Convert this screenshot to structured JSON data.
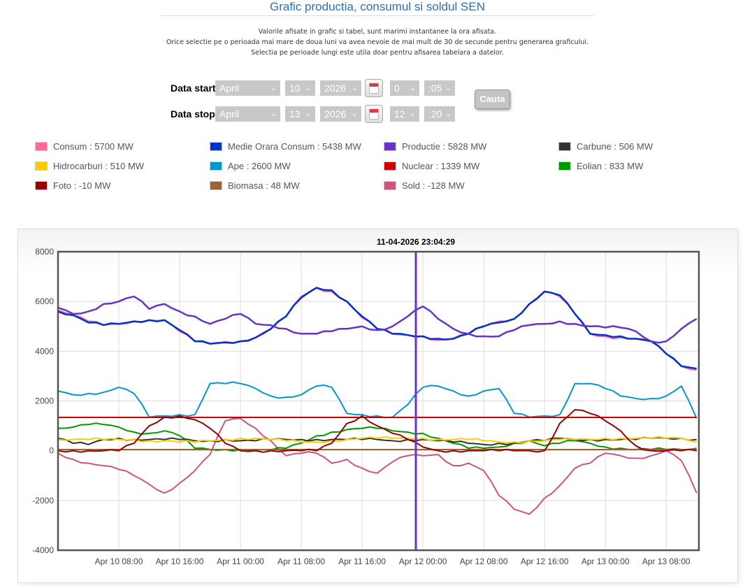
{
  "page": {
    "title": "Grafic productia, consumul si soldul SEN",
    "notes": [
      "Valorile afisate in grafic si tabel, sunt marimi instantanee la ora afisata.",
      "Orice selectie pe o perioada mai mare de doua luni va avea nevoie de mai mult de 30 de secunde pentru generarea graficului.",
      "Selectia pe perioade lungi este utila doar pentru afisarea tabelara a datelor."
    ]
  },
  "form": {
    "start": {
      "label": "Data start",
      "month": "April",
      "day": "10",
      "year": "2026",
      "hour": "0",
      "minute": ":05"
    },
    "stop": {
      "label": "Data stop",
      "month": "April",
      "day": "13",
      "year": "2026",
      "hour": "12",
      "minute": ":20"
    },
    "calendar_icon": "calendar-icon",
    "chevron_icon": "chevron-down-icon",
    "search_button": "Cauta"
  },
  "legend": [
    {
      "name": "Consum",
      "text": "Consum : 5700 MW",
      "color": "#ff6699"
    },
    {
      "name": "Medie Orara Consum",
      "text": "Medie Orara Consum : 5438 MW",
      "color": "#0033cc"
    },
    {
      "name": "Productie",
      "text": "Productie : 5828 MW",
      "color": "#6633cc"
    },
    {
      "name": "Carbune",
      "text": "Carbune : 506 MW",
      "color": "#333333"
    },
    {
      "name": "Hidrocarburi",
      "text": "Hidrocarburi : 510 MW",
      "color": "#ffcc00"
    },
    {
      "name": "Ape",
      "text": "Ape : 2600 MW",
      "color": "#0099cc"
    },
    {
      "name": "Nuclear",
      "text": "Nuclear : 1339 MW",
      "color": "#cc0000"
    },
    {
      "name": "Eolian",
      "text": "Eolian : 833 MW",
      "color": "#009900"
    },
    {
      "name": "Foto",
      "text": "Foto : -10 MW",
      "color": "#990000"
    },
    {
      "name": "Biomasa",
      "text": "Biomasa : 48 MW",
      "color": "#996633"
    },
    {
      "name": "Sold",
      "text": "Sold : -128 MW",
      "color": "#cc5580"
    }
  ],
  "chart_data": {
    "type": "line",
    "title": "11-04-2026 23:04:29",
    "xlabel": "",
    "ylabel": "",
    "ylim": [
      -4000,
      8000
    ],
    "yticks": [
      "8000",
      "6000",
      "4000",
      "2000",
      "0",
      "-2000",
      "-4000"
    ],
    "ytick_values": [
      8000,
      6000,
      4000,
      2000,
      0,
      -2000,
      -4000
    ],
    "x_unit": "hours since Apr 10 00:00",
    "xlim": [
      0,
      84.3
    ],
    "xticks": [
      {
        "label": "Apr 10 08:00",
        "h": 8
      },
      {
        "label": "Apr 10 16:00",
        "h": 16
      },
      {
        "label": "Apr 11 00:00",
        "h": 24
      },
      {
        "label": "Apr 11 08:00",
        "h": 32
      },
      {
        "label": "Apr 11 16:00",
        "h": 40
      },
      {
        "label": "Apr 12 00:00",
        "h": 48
      },
      {
        "label": "Apr 12 08:00",
        "h": 56
      },
      {
        "label": "Apr 12 16:00",
        "h": 64
      },
      {
        "label": "Apr 13 00:00",
        "h": 72
      },
      {
        "label": "Apr 13 08:00",
        "h": 80
      }
    ],
    "cursor_h": 47.07,
    "grid": true,
    "x": [
      0,
      2,
      4,
      6,
      8,
      10,
      12,
      14,
      16,
      18,
      20,
      22,
      24,
      26,
      28,
      30,
      32,
      34,
      36,
      38,
      40,
      42,
      44,
      46,
      48,
      50,
      52,
      54,
      56,
      58,
      60,
      62,
      64,
      66,
      68,
      70,
      72,
      74,
      76,
      78,
      80,
      82,
      84
    ],
    "series": [
      {
        "name": "Sold",
        "color": "#cc5580",
        "values": [
          -100,
          -350,
          -500,
          -600,
          -750,
          -1000,
          -1350,
          -1700,
          -1300,
          -800,
          -150,
          1200,
          1300,
          900,
          400,
          -200,
          -100,
          -100,
          -500,
          -350,
          -700,
          -900,
          -450,
          -200,
          -200,
          -150,
          -600,
          -500,
          -800,
          -1800,
          -2350,
          -2550,
          -1900,
          -1400,
          -700,
          -500,
          -100,
          -200,
          -300,
          -200,
          0,
          -400,
          -1700
        ]
      },
      {
        "name": "Ape",
        "color": "#0099cc",
        "values": [
          2400,
          2250,
          2300,
          2350,
          2550,
          2300,
          1350,
          1400,
          1450,
          1450,
          2700,
          2700,
          2700,
          2500,
          2200,
          2150,
          2250,
          2600,
          2550,
          1500,
          1450,
          1400,
          1350,
          1850,
          2550,
          2600,
          2400,
          2200,
          2400,
          2500,
          1500,
          1350,
          1400,
          1450,
          2700,
          2700,
          2500,
          2200,
          2100,
          2100,
          2200,
          2600,
          1300
        ]
      },
      {
        "name": "Eolian",
        "color": "#009900",
        "values": [
          900,
          950,
          1050,
          1050,
          950,
          750,
          700,
          800,
          600,
          100,
          50,
          50,
          50,
          30,
          30,
          100,
          300,
          600,
          750,
          850,
          900,
          900,
          800,
          750,
          700,
          500,
          300,
          100,
          100,
          150,
          300,
          400,
          200,
          300,
          400,
          300,
          150,
          100,
          50,
          50,
          50,
          50,
          100
        ]
      },
      {
        "name": "Carbune",
        "color": "#333333",
        "values": [
          500,
          300,
          250,
          450,
          500,
          450,
          450,
          450,
          450,
          400,
          400,
          450,
          400,
          400,
          450,
          450,
          450,
          450,
          450,
          450,
          450,
          450,
          400,
          450,
          450,
          400,
          350,
          300,
          250,
          300,
          300,
          400,
          400,
          500,
          450,
          450,
          450,
          450,
          450,
          500,
          500,
          500,
          450
        ]
      },
      {
        "name": "Hidrocarburi",
        "color": "#ffcc00",
        "values": [
          450,
          450,
          450,
          450,
          450,
          450,
          400,
          400,
          350,
          350,
          400,
          450,
          500,
          500,
          450,
          400,
          350,
          350,
          400,
          450,
          500,
          500,
          500,
          500,
          500,
          450,
          450,
          450,
          400,
          350,
          350,
          400,
          400,
          450,
          450,
          450,
          500,
          500,
          500,
          500,
          500,
          500,
          350
        ]
      },
      {
        "name": "Biomasa",
        "color": "#996633",
        "values": [
          48,
          48,
          48,
          48,
          48,
          48,
          48,
          48,
          48,
          48,
          48,
          48,
          48,
          48,
          48,
          48,
          48,
          48,
          48,
          48,
          48,
          48,
          48,
          48,
          48,
          48,
          48,
          48,
          48,
          48,
          48,
          48,
          48,
          48,
          48,
          48,
          48,
          48,
          48,
          48,
          48,
          48,
          48
        ]
      },
      {
        "name": "Nuclear",
        "color": "#cc0000",
        "values": [
          1340,
          1340,
          1340,
          1340,
          1340,
          1340,
          1340,
          1340,
          1340,
          1340,
          1340,
          1340,
          1340,
          1340,
          1340,
          1340,
          1340,
          1340,
          1340,
          1340,
          1340,
          1340,
          1340,
          1340,
          1340,
          1340,
          1340,
          1340,
          1340,
          1340,
          1340,
          1340,
          1340,
          1340,
          1340,
          1340,
          1340,
          1340,
          1340,
          1340,
          1340,
          1340,
          1340
        ]
      },
      {
        "name": "Foto",
        "color": "#990000",
        "values": [
          0,
          0,
          0,
          0,
          0,
          300,
          1000,
          1350,
          1400,
          1250,
          900,
          300,
          0,
          0,
          0,
          0,
          0,
          0,
          300,
          1100,
          1400,
          1000,
          700,
          450,
          150,
          0,
          0,
          0,
          0,
          0,
          0,
          0,
          0,
          1100,
          1650,
          1500,
          1200,
          800,
          200,
          0,
          0,
          0,
          0
        ]
      },
      {
        "name": "Consum",
        "color": "#ff6699",
        "values": [
          5650,
          5450,
          5200,
          5050,
          5100,
          5200,
          5250,
          5250,
          4800,
          4400,
          4300,
          4380,
          4400,
          4550,
          4900,
          5400,
          6200,
          6550,
          6400,
          6000,
          5350,
          4900,
          4700,
          4650,
          4600,
          4450,
          4500,
          4700,
          5000,
          5200,
          5300,
          5900,
          6400,
          6200,
          5500,
          4700,
          4600,
          4550,
          4500,
          4400,
          3900,
          3400,
          3250
        ]
      },
      {
        "name": "Medie Orara Consum",
        "color": "#0033cc",
        "values": [
          5600,
          5450,
          5150,
          5050,
          5100,
          5200,
          5250,
          5250,
          4850,
          4400,
          4300,
          4350,
          4400,
          4550,
          4900,
          5400,
          6150,
          6550,
          6450,
          6000,
          5400,
          4900,
          4700,
          4650,
          4600,
          4500,
          4500,
          4700,
          5000,
          5150,
          5300,
          5900,
          6400,
          6250,
          5500,
          4700,
          4650,
          4600,
          4500,
          4400,
          3900,
          3400,
          3300
        ]
      },
      {
        "name": "Productie",
        "color": "#6633cc",
        "values": [
          5750,
          5500,
          5600,
          5900,
          6000,
          6200,
          5700,
          5900,
          5600,
          5400,
          5100,
          5300,
          5500,
          5100,
          5050,
          4900,
          4700,
          4700,
          4800,
          4900,
          5000,
          4850,
          5000,
          5400,
          5800,
          5300,
          4900,
          4700,
          4600,
          4600,
          4850,
          5050,
          5100,
          5200,
          5100,
          5000,
          4950,
          4950,
          4800,
          4400,
          4400,
          4900,
          5300
        ]
      }
    ]
  }
}
